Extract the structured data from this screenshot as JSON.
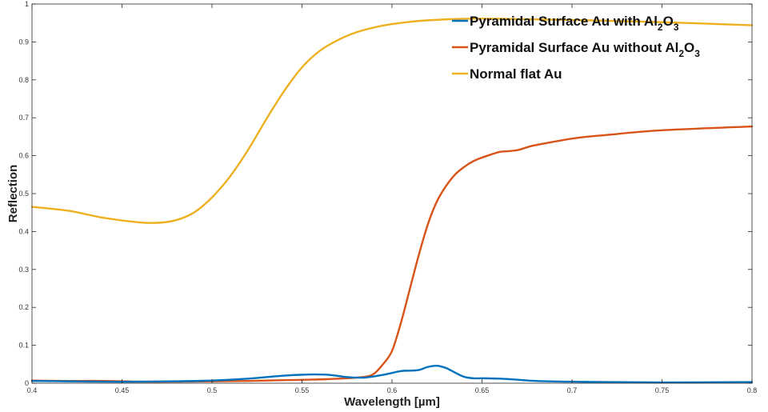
{
  "chart_data": {
    "type": "line",
    "xlabel": "Wavelength [µm]",
    "ylabel": "Reflection",
    "xlim": [
      0.4,
      0.8
    ],
    "ylim": [
      0,
      1
    ],
    "x_ticks": [
      "0.4",
      "0.45",
      "0.5",
      "0.55",
      "0.6",
      "0.65",
      "0.7",
      "0.75",
      "0.8"
    ],
    "y_ticks": [
      "0",
      "0.1",
      "0.2",
      "0.3",
      "0.4",
      "0.5",
      "0.6",
      "0.7",
      "0.8",
      "0.9",
      "1"
    ],
    "grid": false,
    "legend_position": "top-right",
    "series": [
      {
        "name": "Pyramidal Surface Au with Al2O3",
        "legend_parts": [
          "Pyramidal Surface Au with Al",
          "2",
          "O",
          "3"
        ],
        "color": "#0072BD",
        "x": [
          0.4,
          0.42,
          0.44,
          0.46,
          0.48,
          0.5,
          0.52,
          0.54,
          0.555,
          0.565,
          0.575,
          0.585,
          0.595,
          0.605,
          0.61,
          0.615,
          0.62,
          0.625,
          0.63,
          0.635,
          0.64,
          0.645,
          0.65,
          0.66,
          0.67,
          0.68,
          0.7,
          0.72,
          0.75,
          0.8
        ],
        "y": [
          0.006,
          0.005,
          0.004,
          0.004,
          0.005,
          0.007,
          0.012,
          0.02,
          0.023,
          0.022,
          0.016,
          0.015,
          0.022,
          0.032,
          0.033,
          0.035,
          0.043,
          0.046,
          0.04,
          0.028,
          0.017,
          0.013,
          0.013,
          0.012,
          0.009,
          0.006,
          0.004,
          0.003,
          0.002,
          0.003
        ]
      },
      {
        "name": "Pyramidal Surface Au without Al2O3",
        "legend_parts": [
          "Pyramidal Surface Au without Al",
          "2",
          "O",
          "3"
        ],
        "color": "#D95319",
        "x": [
          0.4,
          0.42,
          0.44,
          0.46,
          0.48,
          0.5,
          0.52,
          0.54,
          0.56,
          0.575,
          0.585,
          0.59,
          0.595,
          0.6,
          0.605,
          0.61,
          0.615,
          0.62,
          0.625,
          0.63,
          0.635,
          0.64,
          0.645,
          0.65,
          0.655,
          0.66,
          0.665,
          0.67,
          0.675,
          0.68,
          0.7,
          0.72,
          0.75,
          0.8
        ],
        "y": [
          0.007,
          0.006,
          0.006,
          0.004,
          0.004,
          0.005,
          0.006,
          0.008,
          0.01,
          0.013,
          0.017,
          0.025,
          0.05,
          0.085,
          0.16,
          0.25,
          0.34,
          0.42,
          0.48,
          0.52,
          0.55,
          0.57,
          0.585,
          0.595,
          0.603,
          0.61,
          0.612,
          0.615,
          0.622,
          0.628,
          0.645,
          0.655,
          0.667,
          0.677
        ]
      },
      {
        "name": "Normal flat Au",
        "legend_parts": [
          "Normal flat Au"
        ],
        "color": "#EDB120",
        "x": [
          0.4,
          0.42,
          0.44,
          0.46,
          0.47,
          0.48,
          0.49,
          0.5,
          0.51,
          0.52,
          0.53,
          0.54,
          0.55,
          0.56,
          0.57,
          0.58,
          0.59,
          0.6,
          0.61,
          0.62,
          0.64,
          0.66,
          0.7,
          0.75,
          0.8
        ],
        "y": [
          0.465,
          0.455,
          0.436,
          0.424,
          0.423,
          0.43,
          0.45,
          0.49,
          0.545,
          0.615,
          0.695,
          0.77,
          0.833,
          0.877,
          0.905,
          0.925,
          0.938,
          0.947,
          0.953,
          0.957,
          0.961,
          0.961,
          0.958,
          0.952,
          0.944
        ]
      }
    ]
  }
}
